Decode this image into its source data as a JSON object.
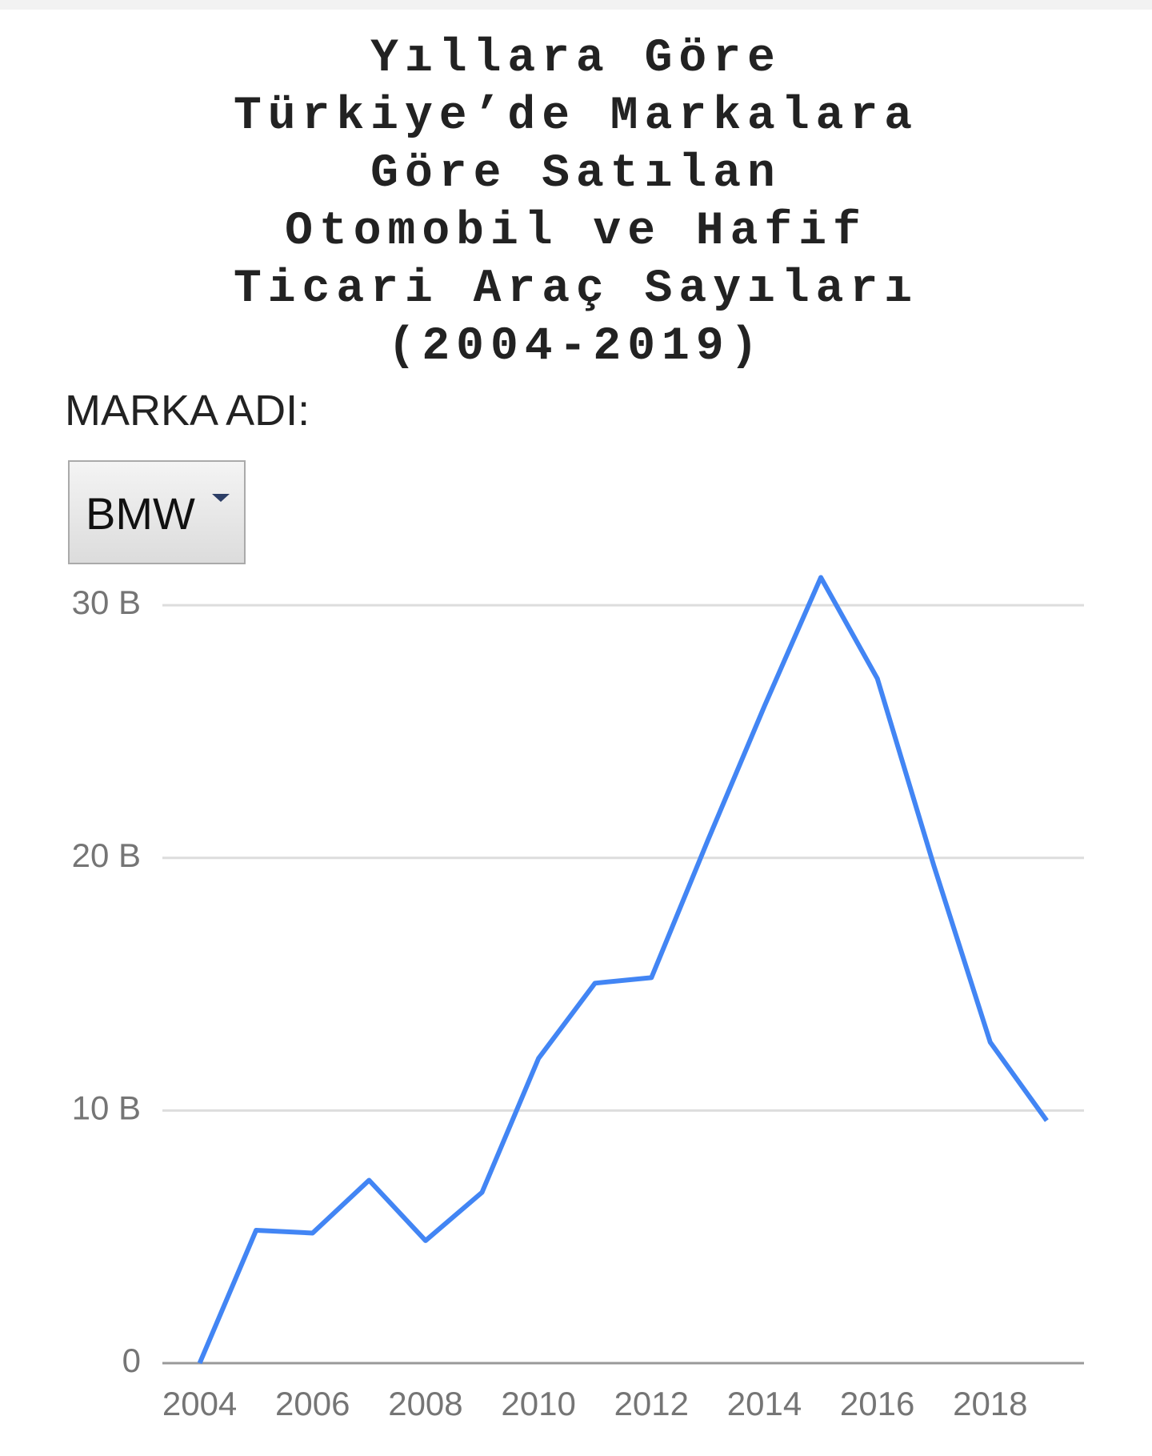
{
  "chart_data": {
    "type": "line",
    "title": "Yıllara Göre Türkiye’de Markalara Göre Satılan Otomobil ve Hafif Ticari Araç Sayıları (2004-2019)",
    "x": [
      2004,
      2005,
      2006,
      2007,
      2008,
      2009,
      2010,
      2011,
      2012,
      2013,
      2014,
      2015,
      2016,
      2017,
      2018,
      2019
    ],
    "values": [
      0,
      5.26,
      5.15,
      7.24,
      4.85,
      6.76,
      12.06,
      15.04,
      15.26,
      20.7,
      26.0,
      31.1,
      27.1,
      19.7,
      12.7,
      9.6
    ],
    "color": "#4285f4",
    "xlim": [
      2003.34,
      2019.66
    ],
    "xticks": [
      2004,
      2006,
      2008,
      2010,
      2012,
      2014,
      2016,
      2018
    ],
    "ylim": [
      0,
      32
    ],
    "yticks": [
      0,
      {
        "value": 10,
        "label": "10 B"
      },
      {
        "value": 20,
        "label": "20 B"
      },
      {
        "value": 30,
        "label": "30 B"
      }
    ],
    "grid": true
  },
  "controls": {
    "label": "MARKA ADI:",
    "selected": "BMW"
  }
}
